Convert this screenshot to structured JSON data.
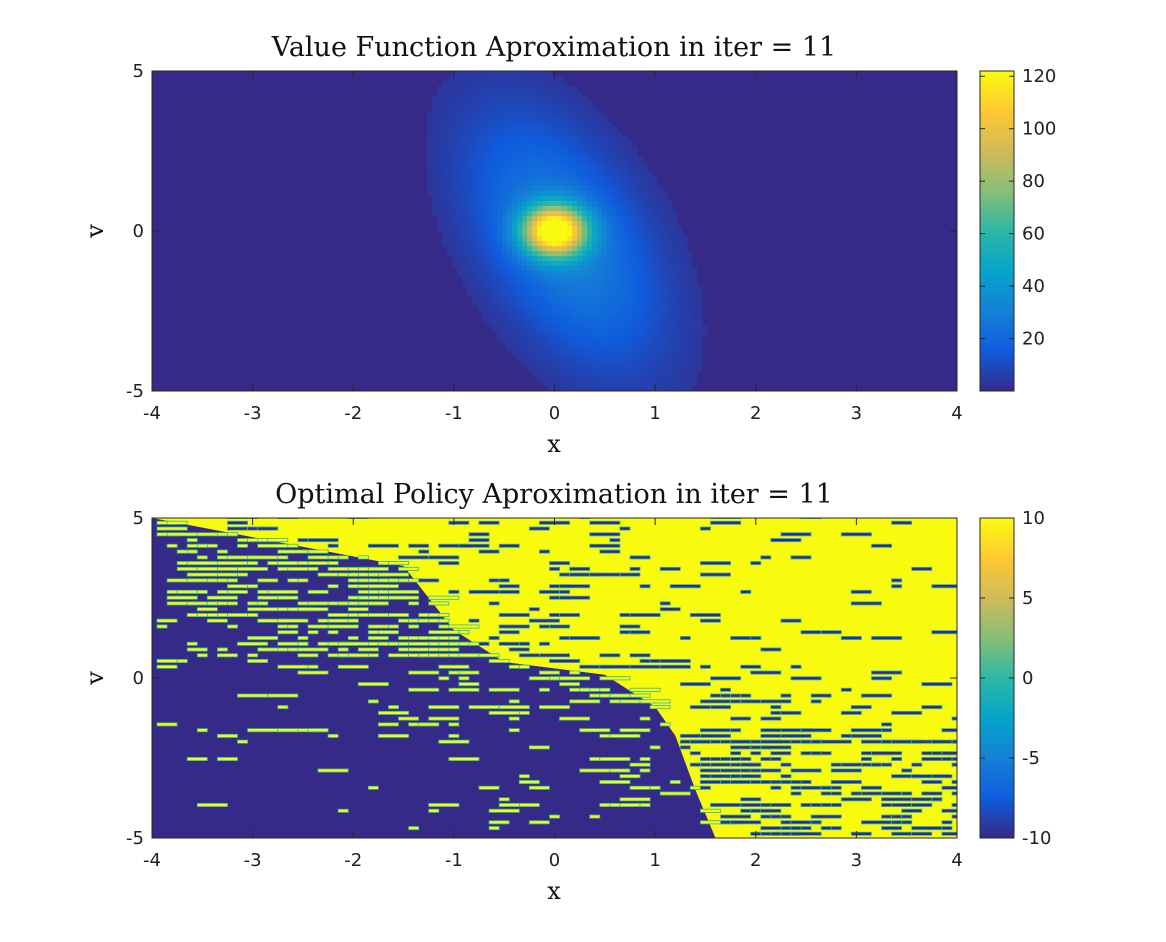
{
  "chart_data": [
    {
      "type": "heatmap",
      "title": "Value Function Aproximation in iter = 11",
      "xlabel": "x",
      "ylabel": "v",
      "xlim": [
        -4,
        4
      ],
      "ylim": [
        -5,
        5
      ],
      "x_ticks": [
        -4,
        -3,
        -2,
        -1,
        0,
        1,
        2,
        3,
        4
      ],
      "y_ticks": [
        -5,
        0,
        5
      ],
      "colorbar": {
        "min": 0,
        "max": 122,
        "ticks": [
          20,
          40,
          60,
          80,
          100,
          120
        ]
      },
      "colormap": "parula",
      "features": [
        {
          "shape": "gaussian-peak",
          "center_x": 0,
          "center_v": 0,
          "peak_value": 115,
          "spread_x": 0.22,
          "spread_v": 0.55
        },
        {
          "shape": "diffuse-halo",
          "center_x": 0.1,
          "center_v": -0.3,
          "peak_value": 30,
          "spread_x": 0.55,
          "spread_v": 2.6,
          "tilt": "negative correlation between x and v"
        }
      ],
      "background_value": 1
    },
    {
      "type": "heatmap",
      "title": "Optimal Policy Aproximation in iter = 11",
      "xlabel": "x",
      "ylabel": "v",
      "xlim": [
        -4,
        4
      ],
      "ylim": [
        -5,
        5
      ],
      "x_ticks": [
        -4,
        -3,
        -2,
        -1,
        0,
        1,
        2,
        3,
        4
      ],
      "y_ticks": [
        -5,
        0,
        5
      ],
      "colorbar": {
        "min": -10,
        "max": 10,
        "ticks": [
          -10,
          -5,
          0,
          5,
          10
        ]
      },
      "colormap": "parula",
      "values": [
        -10,
        10
      ],
      "regions": [
        {
          "value": 10,
          "description": "upper-right region"
        },
        {
          "value": -10,
          "description": "lower-left region"
        }
      ],
      "boundary_points": [
        [
          -4,
          5
        ],
        [
          -1.5,
          3.5
        ],
        [
          -1,
          1.5
        ],
        [
          -0.5,
          0.5
        ],
        [
          0.5,
          0.1
        ],
        [
          1,
          -0.9
        ],
        [
          1.2,
          -1.8
        ],
        [
          1.4,
          -3.5
        ],
        [
          1.6,
          -5
        ]
      ],
      "noise": "scattered mis-assigned cells near and beyond the switching boundary"
    }
  ]
}
